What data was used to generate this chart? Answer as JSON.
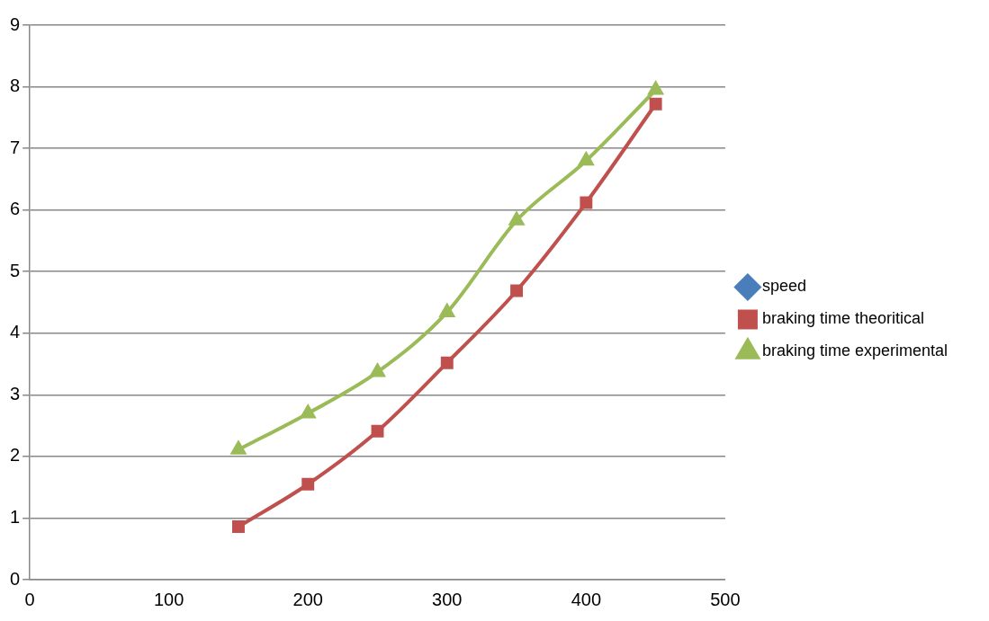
{
  "chart_data": {
    "type": "line",
    "x": [
      150,
      200,
      250,
      300,
      350,
      400,
      450
    ],
    "xlim": [
      0,
      500
    ],
    "xticks": [
      0,
      100,
      200,
      300,
      400,
      500
    ],
    "ylim": [
      0,
      9
    ],
    "yticks": [
      0,
      1,
      2,
      3,
      4,
      5,
      6,
      7,
      8,
      9
    ],
    "grid": "y",
    "legend": "right",
    "series": [
      {
        "name": "speed",
        "color": "#4a7ebb",
        "marker": "diamond",
        "values": [
          null,
          null,
          null,
          null,
          null,
          null,
          null
        ]
      },
      {
        "name": "braking time theoritical",
        "color": "#c0504d",
        "marker": "square",
        "values": [
          0.86,
          1.55,
          2.41,
          3.52,
          4.69,
          6.12,
          7.72
        ]
      },
      {
        "name": "braking time experimental",
        "color": "#9bbb59",
        "marker": "triangle",
        "values": [
          2.11,
          2.7,
          3.37,
          4.34,
          5.83,
          6.8,
          7.95
        ]
      }
    ]
  }
}
